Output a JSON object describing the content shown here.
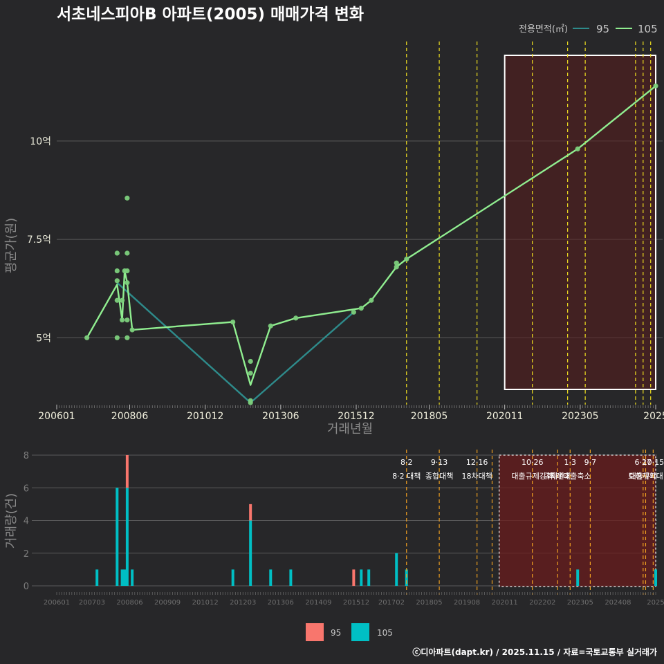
{
  "title": "서초네스피아B 아파트(2005) 매매가격 변화",
  "footer": "ⓒ디아파트(dapt.kr) / 2025.11.15 / 자료=국토교통부 실거래가",
  "colors": {
    "background": "#272729",
    "line_95": "#2e8b8b",
    "line_105": "#90ee90",
    "point": "#7ccf7c",
    "bar_95": "#f8766d",
    "bar_105": "#00bfc4",
    "policy_line": "#f0e020",
    "policy_line_bottom": "#f0a020",
    "shade": "#5a1e1e"
  },
  "chart_data": [
    {
      "type": "line",
      "title": "서초네스피아B 아파트(2005) 매매가격 변화",
      "xlabel": "거래년월",
      "ylabel": "평균가(원)",
      "x_range": [
        "2006-01",
        "2025-11"
      ],
      "x_ticks": [
        "200601",
        "200806",
        "201012",
        "201306",
        "201512",
        "201805",
        "202011",
        "202305",
        "2025"
      ],
      "y_ticks": [
        {
          "value": 5,
          "label": "5억"
        },
        {
          "value": 7.5,
          "label": "7.5억"
        },
        {
          "value": 10,
          "label": "10억"
        }
      ],
      "ylim": [
        3.3,
        12.6
      ],
      "legend": {
        "title": "전용면적(㎡)",
        "position": "top-right",
        "entries": [
          "95",
          "105"
        ]
      },
      "series": [
        {
          "name": "95",
          "points": [
            {
              "x": "2008-01",
              "y": 6.4
            },
            {
              "x": "2012-06",
              "y": 3.35
            },
            {
              "x": "2015-11",
              "y": 5.65
            }
          ]
        },
        {
          "name": "105",
          "points": [
            {
              "x": "2007-01",
              "y": 5.0
            },
            {
              "x": "2008-01",
              "y": 6.35
            },
            {
              "x": "2008-03",
              "y": 5.45
            },
            {
              "x": "2008-04",
              "y": 6.7
            },
            {
              "x": "2008-05",
              "y": 6.4
            },
            {
              "x": "2008-07",
              "y": 5.2
            },
            {
              "x": "2011-11",
              "y": 5.4
            },
            {
              "x": "2012-06",
              "y": 3.8
            },
            {
              "x": "2013-02",
              "y": 5.3
            },
            {
              "x": "2013-12",
              "y": 5.5
            },
            {
              "x": "2016-02",
              "y": 5.75
            },
            {
              "x": "2016-06",
              "y": 5.95
            },
            {
              "x": "2017-04",
              "y": 6.8
            },
            {
              "x": "2017-08",
              "y": 7.0
            },
            {
              "x": "2023-04",
              "y": 9.8
            },
            {
              "x": "2025-11",
              "y": 11.4
            }
          ]
        }
      ],
      "scatter": [
        {
          "x": "2007-01",
          "y": 5.0
        },
        {
          "x": "2008-01",
          "y": 5.0
        },
        {
          "x": "2008-01",
          "y": 5.95
        },
        {
          "x": "2008-01",
          "y": 6.45
        },
        {
          "x": "2008-01",
          "y": 6.7
        },
        {
          "x": "2008-01",
          "y": 7.15
        },
        {
          "x": "2008-03",
          "y": 5.95
        },
        {
          "x": "2008-03",
          "y": 5.45
        },
        {
          "x": "2008-04",
          "y": 6.7
        },
        {
          "x": "2008-05",
          "y": 5.0
        },
        {
          "x": "2008-05",
          "y": 5.45
        },
        {
          "x": "2008-05",
          "y": 6.4
        },
        {
          "x": "2008-05",
          "y": 6.7
        },
        {
          "x": "2008-05",
          "y": 7.15
        },
        {
          "x": "2008-05",
          "y": 8.55
        },
        {
          "x": "2008-07",
          "y": 5.2
        },
        {
          "x": "2011-11",
          "y": 5.4
        },
        {
          "x": "2012-06",
          "y": 3.35
        },
        {
          "x": "2012-06",
          "y": 3.4
        },
        {
          "x": "2012-06",
          "y": 4.1
        },
        {
          "x": "2012-06",
          "y": 4.4
        },
        {
          "x": "2013-02",
          "y": 5.3
        },
        {
          "x": "2013-12",
          "y": 5.5
        },
        {
          "x": "2015-11",
          "y": 5.65
        },
        {
          "x": "2016-02",
          "y": 5.75
        },
        {
          "x": "2016-06",
          "y": 5.95
        },
        {
          "x": "2017-04",
          "y": 6.8
        },
        {
          "x": "2017-04",
          "y": 6.9
        },
        {
          "x": "2017-08",
          "y": 7.0
        },
        {
          "x": "2023-04",
          "y": 9.8
        },
        {
          "x": "2025-11",
          "y": 11.4
        }
      ],
      "policy_lines": [
        "2017-08",
        "2018-09",
        "2019-12",
        "2021-10",
        "2022-12",
        "2023-07",
        "2025-03",
        "2025-06",
        "2025-09"
      ],
      "shaded_range": [
        "2020-11",
        "2025-11"
      ]
    },
    {
      "type": "bar",
      "ylabel": "거래량(건)",
      "x_ticks": [
        "200601",
        "200703",
        "200806",
        "200909",
        "201012",
        "201203",
        "201306",
        "201409",
        "201512",
        "201702",
        "201805",
        "201908",
        "202011",
        "202202",
        "202305",
        "202408",
        "2025"
      ],
      "y_ticks": [
        0,
        2,
        4,
        6,
        8
      ],
      "ylim": [
        0,
        8.4
      ],
      "legend": {
        "position": "bottom",
        "entries": [
          "95",
          "105"
        ]
      },
      "series": [
        {
          "name": "105",
          "points": [
            {
              "x": "2007-05",
              "y": 1
            },
            {
              "x": "2008-01",
              "y": 6
            },
            {
              "x": "2008-03",
              "y": 1
            },
            {
              "x": "2008-04",
              "y": 1
            },
            {
              "x": "2008-05",
              "y": 6
            },
            {
              "x": "2008-07",
              "y": 1
            },
            {
              "x": "2011-11",
              "y": 1
            },
            {
              "x": "2012-06",
              "y": 4
            },
            {
              "x": "2013-02",
              "y": 1
            },
            {
              "x": "2013-10",
              "y": 1
            },
            {
              "x": "2016-02",
              "y": 1
            },
            {
              "x": "2016-05",
              "y": 1
            },
            {
              "x": "2017-04",
              "y": 2
            },
            {
              "x": "2017-08",
              "y": 1
            },
            {
              "x": "2023-04",
              "y": 1
            },
            {
              "x": "2025-11",
              "y": 1
            }
          ]
        },
        {
          "name": "95",
          "points": [
            {
              "x": "2008-05",
              "y": 2
            },
            {
              "x": "2012-06",
              "y": 1
            },
            {
              "x": "2015-11",
              "y": 1
            }
          ]
        }
      ],
      "policies": [
        {
          "x": "2017-08",
          "date": "8·2",
          "label": "8·2 대책"
        },
        {
          "x": "2018-09",
          "date": "9·13",
          "label": "종합대책"
        },
        {
          "x": "2019-12",
          "date": "12·16",
          "label": "18차대책"
        },
        {
          "x": "2020-06",
          "date": "",
          "label": ""
        },
        {
          "x": "2021-10",
          "date": "10·26",
          "label": "대출규제강화"
        },
        {
          "x": "2022-08",
          "date": "",
          "label": "규제완화"
        },
        {
          "x": "2023-01",
          "date": "1·3",
          "label": "특례대출축소"
        },
        {
          "x": "2023-09",
          "date": "9·7",
          "label": ""
        },
        {
          "x": "2025-06",
          "date": "6·27",
          "label": "대출규제"
        },
        {
          "x": "2025-07",
          "date": "",
          "label": "토허제확대"
        },
        {
          "x": "2025-10",
          "date": "10·15",
          "label": ""
        }
      ],
      "shaded_range": [
        "2020-11",
        "2025-11"
      ]
    }
  ]
}
